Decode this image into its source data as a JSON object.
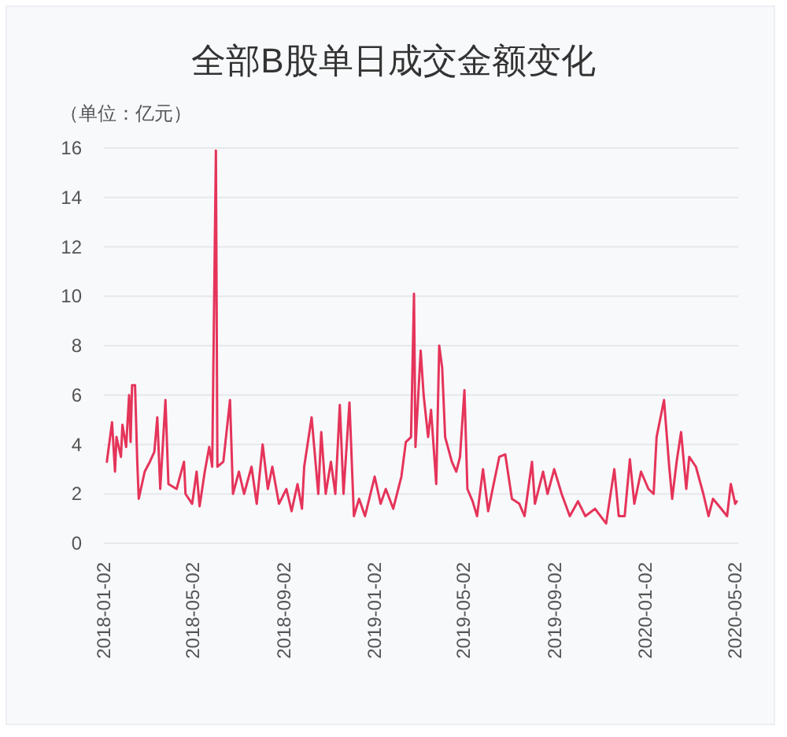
{
  "chart_data": {
    "type": "line",
    "title": "全部B股单日成交金额变化",
    "ylabel": "（单位：亿元）",
    "x": [
      "2018-01-06",
      "2018-01-13",
      "2018-01-17",
      "2018-01-19",
      "2018-01-25",
      "2018-01-27",
      "2018-02-01",
      "2018-02-05",
      "2018-02-07",
      "2018-02-09",
      "2018-02-13",
      "2018-02-16",
      "2018-02-18",
      "2018-02-26",
      "2018-03-05",
      "2018-03-11",
      "2018-03-15",
      "2018-03-19",
      "2018-03-26",
      "2018-03-30",
      "2018-04-10",
      "2018-04-20",
      "2018-04-22",
      "2018-05-01",
      "2018-05-07",
      "2018-05-11",
      "2018-05-18",
      "2018-05-24",
      "2018-05-28",
      "2018-06-02",
      "2018-06-04",
      "2018-06-12",
      "2018-06-21",
      "2018-06-25",
      "2018-07-03",
      "2018-07-10",
      "2018-07-20",
      "2018-07-27",
      "2018-08-04",
      "2018-08-11",
      "2018-08-17",
      "2018-08-26",
      "2018-09-05",
      "2018-09-12",
      "2018-09-20",
      "2018-09-26",
      "2018-09-29",
      "2018-10-09",
      "2018-10-18",
      "2018-10-22",
      "2018-10-28",
      "2018-11-04",
      "2018-11-10",
      "2018-11-16",
      "2018-11-21",
      "2018-11-29",
      "2018-12-05",
      "2018-12-12",
      "2018-12-20",
      "2019-01-02",
      "2019-01-10",
      "2019-01-17",
      "2019-01-27",
      "2019-02-07",
      "2019-02-13",
      "2019-02-20",
      "2019-02-24",
      "2019-02-26",
      "2019-03-05",
      "2019-03-09",
      "2019-03-15",
      "2019-03-19",
      "2019-03-26",
      "2019-03-30",
      "2019-04-03",
      "2019-04-07",
      "2019-04-16",
      "2019-04-22",
      "2019-04-27",
      "2019-05-03",
      "2019-05-07",
      "2019-05-14",
      "2019-05-20",
      "2019-05-28",
      "2019-06-04",
      "2019-06-10",
      "2019-06-19",
      "2019-06-27",
      "2019-07-06",
      "2019-07-16",
      "2019-07-23",
      "2019-08-02",
      "2019-08-06",
      "2019-08-17",
      "2019-08-23",
      "2019-09-01",
      "2019-09-11",
      "2019-09-22",
      "2019-10-03",
      "2019-10-13",
      "2019-10-26",
      "2019-11-10",
      "2019-11-21",
      "2019-11-27",
      "2019-12-05",
      "2019-12-12",
      "2019-12-18",
      "2019-12-27",
      "2020-01-06",
      "2020-01-13",
      "2020-01-17",
      "2020-01-27",
      "2020-02-03",
      "2020-02-07",
      "2020-02-13",
      "2020-02-19",
      "2020-02-26",
      "2020-03-01",
      "2020-03-10",
      "2020-03-20",
      "2020-03-27",
      "2020-04-02",
      "2020-04-13",
      "2020-04-21",
      "2020-04-26",
      "2020-05-02",
      "2020-05-04"
    ],
    "series": [
      {
        "color": "#e5345a",
        "values": [
          3.3,
          4.9,
          2.9,
          4.3,
          3.5,
          4.8,
          3.9,
          6.0,
          4.1,
          6.4,
          6.4,
          3.3,
          1.8,
          2.9,
          3.3,
          3.7,
          5.1,
          2.2,
          5.8,
          2.4,
          2.2,
          3.3,
          2.0,
          1.6,
          2.9,
          1.5,
          2.9,
          3.9,
          3.1,
          15.9,
          3.1,
          3.3,
          5.8,
          2.0,
          2.9,
          2.0,
          3.1,
          1.6,
          4.0,
          2.2,
          3.1,
          1.6,
          2.2,
          1.3,
          2.4,
          1.4,
          3.1,
          5.1,
          2.0,
          4.5,
          2.0,
          3.3,
          2.0,
          5.6,
          2.0,
          5.7,
          1.1,
          1.8,
          1.1,
          2.7,
          1.6,
          2.2,
          1.4,
          2.7,
          4.1,
          4.3,
          10.1,
          3.9,
          7.8,
          6.0,
          4.3,
          5.4,
          2.4,
          8.0,
          7.1,
          4.3,
          3.3,
          2.9,
          3.5,
          6.2,
          2.2,
          1.7,
          1.1,
          3.0,
          1.3,
          2.2,
          3.5,
          3.6,
          1.8,
          1.6,
          1.1,
          3.3,
          1.6,
          2.9,
          2.0,
          3.0,
          2.0,
          1.1,
          1.7,
          1.1,
          1.4,
          0.8,
          3.0,
          1.1,
          1.1,
          3.4,
          1.6,
          2.9,
          2.2,
          2.0,
          4.3,
          5.8,
          3.1,
          1.8,
          3.3,
          4.5,
          2.2,
          3.5,
          3.1,
          2.0,
          1.1,
          1.8,
          1.4,
          1.1,
          2.4,
          1.6,
          1.7
        ]
      }
    ],
    "xlim": [
      "2018-01-02",
      "2020-05-06"
    ],
    "xticks": [
      {
        "value": "2018-01-02",
        "label": "2018-01-02"
      },
      {
        "value": "2018-05-02",
        "label": "2018-05-02"
      },
      {
        "value": "2018-09-02",
        "label": "2018-09-02"
      },
      {
        "value": "2019-01-02",
        "label": "2019-01-02"
      },
      {
        "value": "2019-05-02",
        "label": "2019-05-02"
      },
      {
        "value": "2019-09-02",
        "label": "2019-09-02"
      },
      {
        "value": "2020-01-02",
        "label": "2020-01-02"
      },
      {
        "value": "2020-05-02",
        "label": "2020-05-02"
      }
    ],
    "ylim": [
      0,
      16
    ],
    "yticks": [
      0,
      2,
      4,
      6,
      8,
      10,
      12,
      14,
      16
    ],
    "grid": "y"
  }
}
